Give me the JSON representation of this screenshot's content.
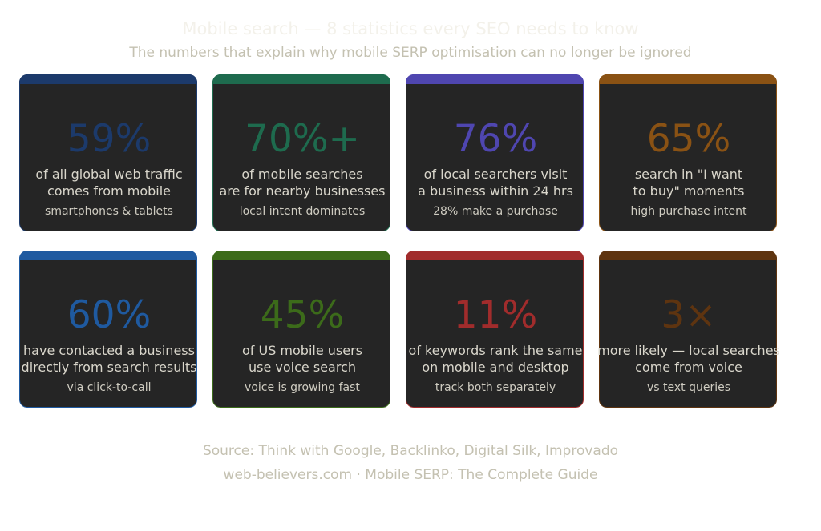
{
  "header": {
    "title": "Mobile search — 8 statistics every SEO needs to know",
    "subtitle": "The numbers that explain why mobile SERP optimisation can no longer be ignored"
  },
  "cards": [
    {
      "value": "59%",
      "line1": "of all global web traffic",
      "line2": "comes from mobile",
      "note": "smartphones & tablets",
      "color": "#1c3a6b"
    },
    {
      "value": "70%+",
      "line1": "of mobile searches",
      "line2": "are for nearby businesses",
      "note": "local intent dominates",
      "color": "#1e6b4e"
    },
    {
      "value": "76%",
      "line1": "of local searchers visit",
      "line2": "a business within 24 hrs",
      "note": "28% make a purchase",
      "color": "#4f46b0"
    },
    {
      "value": "65%",
      "line1": "search in \"I want",
      "line2": "to buy\" moments",
      "note": "high purchase intent",
      "color": "#8a5214"
    },
    {
      "value": "60%",
      "line1": "have contacted a business",
      "line2": "directly from search results",
      "note": "via click-to-call",
      "color": "#1f5aa0"
    },
    {
      "value": "45%",
      "line1": "of US mobile users",
      "line2": "use voice search",
      "note": "voice is growing fast",
      "color": "#3c6b1a"
    },
    {
      "value": "11%",
      "line1": "of keywords rank the same",
      "line2": "on mobile and desktop",
      "note": "track both separately",
      "color": "#a12c2c"
    },
    {
      "value": "3×",
      "line1": "more likely — local searches",
      "line2": "come from voice",
      "note": "vs text queries",
      "color": "#5e3410"
    }
  ],
  "footer": {
    "source": "Source: Think with Google, Backlinko, Digital Silk, Improvado",
    "credit": "web-believers.com · Mobile SERP: The Complete Guide"
  }
}
